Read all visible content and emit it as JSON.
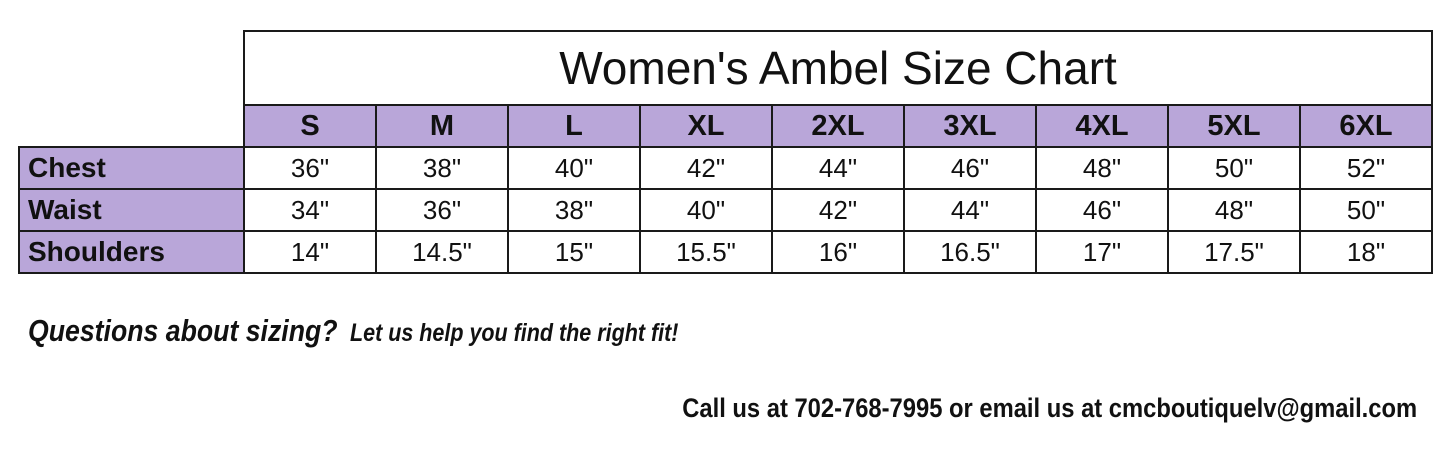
{
  "table": {
    "title": "Women's Ambel Size Chart",
    "sizes": [
      "S",
      "M",
      "L",
      "XL",
      "2XL",
      "3XL",
      "4XL",
      "5XL",
      "6XL"
    ],
    "rows": [
      {
        "label": "Chest",
        "values": [
          "36\"",
          "38\"",
          "40\"",
          "42\"",
          "44\"",
          "46\"",
          "48\"",
          "50\"",
          "52\""
        ]
      },
      {
        "label": "Waist",
        "values": [
          "34\"",
          "36\"",
          "38\"",
          "40\"",
          "42\"",
          "44\"",
          "46\"",
          "48\"",
          "50\""
        ]
      },
      {
        "label": "Shoulders",
        "values": [
          "14\"",
          "14.5\"",
          "15\"",
          "15.5\"",
          "16\"",
          "16.5\"",
          "17\"",
          "17.5\"",
          "18\""
        ]
      }
    ]
  },
  "footer": {
    "question_lead": "Questions about sizing?",
    "question_rest": "Let us help you find the right fit!",
    "contact": "Call us at 702-768-7995 or email us at cmcboutiquelv@gmail.com"
  },
  "colors": {
    "header_fill": "#b9a6d9",
    "border": "#1a1a1a",
    "text": "#111111",
    "background": "#ffffff"
  }
}
